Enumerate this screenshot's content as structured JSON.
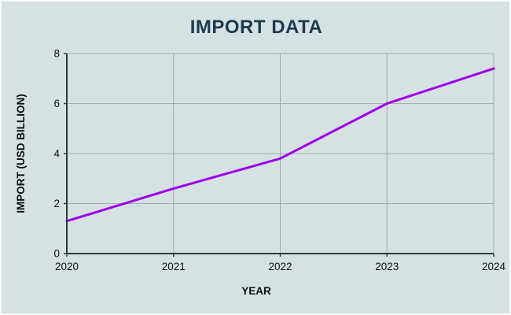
{
  "colors": {
    "background": "#d6e1e3",
    "frame_border": "#fbfdfd",
    "title_text": "#1c3b4d",
    "axis_text": "#0e0e0e",
    "gridline": "#a4aeb0",
    "axis_line": "#2e3a3e",
    "series_line": "#9c00e8"
  },
  "chart_data": {
    "type": "line",
    "title": "IMPORT DATA",
    "xlabel": "YEAR",
    "ylabel": "IMPORT (USD BILLION)",
    "x": [
      2020,
      2021,
      2022,
      2023,
      2024
    ],
    "xtick_labels": [
      "2020",
      "2021",
      "2022",
      "2023",
      "2024"
    ],
    "values": [
      1.3,
      2.6,
      3.8,
      6.0,
      7.4
    ],
    "ylim": [
      0,
      8
    ],
    "yticks": [
      0,
      2,
      4,
      6,
      8
    ],
    "grid": true,
    "legend": "none",
    "line_color": "#9c00e8",
    "line_width": 3
  }
}
